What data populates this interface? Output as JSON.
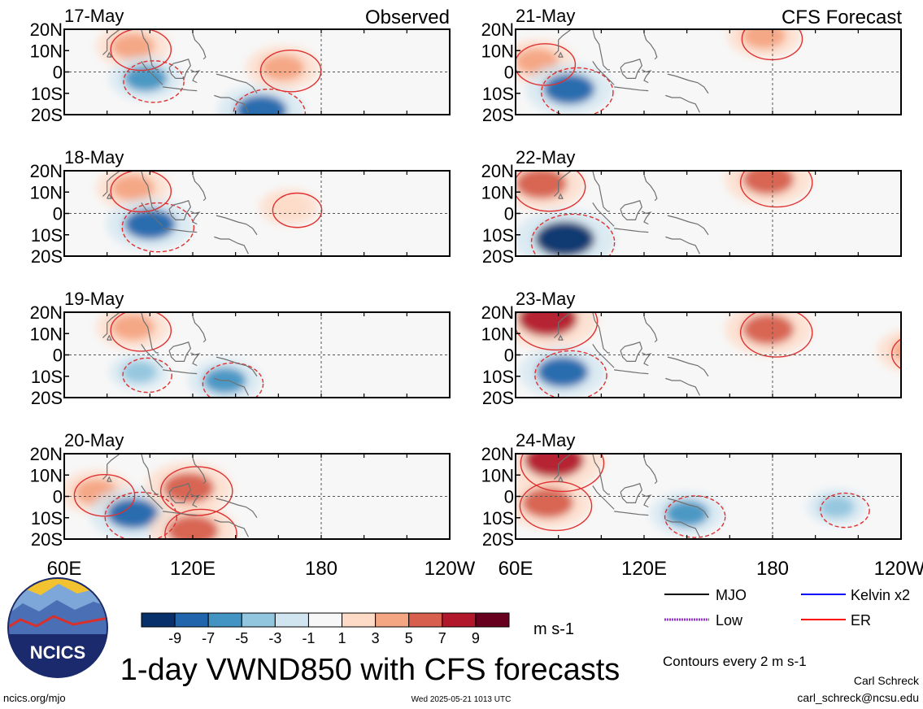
{
  "title": "1-day VWND850 with CFS forecasts",
  "columns": [
    {
      "label": "Observed"
    },
    {
      "label": "CFS Forecast"
    }
  ],
  "panels": [
    {
      "date": "17-May",
      "col": 0,
      "row": 0
    },
    {
      "date": "18-May",
      "col": 0,
      "row": 1
    },
    {
      "date": "19-May",
      "col": 0,
      "row": 2
    },
    {
      "date": "20-May",
      "col": 0,
      "row": 3
    },
    {
      "date": "21-May",
      "col": 1,
      "row": 0
    },
    {
      "date": "22-May",
      "col": 1,
      "row": 1
    },
    {
      "date": "23-May",
      "col": 1,
      "row": 2
    },
    {
      "date": "24-May",
      "col": 1,
      "row": 3
    }
  ],
  "lat_ticks": [
    "20N",
    "10N",
    "0",
    "10S",
    "20S"
  ],
  "lon_ticks": [
    "60E",
    "120E",
    "180",
    "120W"
  ],
  "colorbar": {
    "labels": [
      "-9",
      "-7",
      "-5",
      "-3",
      "-1",
      "1",
      "3",
      "5",
      "7",
      "9"
    ],
    "colors": [
      "#08306b",
      "#2166ac",
      "#4393c3",
      "#92c5de",
      "#d1e5f0",
      "#f7f7f7",
      "#fddbc7",
      "#f4a582",
      "#d6604d",
      "#b2182b",
      "#67001f"
    ],
    "units": "m s-1"
  },
  "legend": {
    "items": [
      {
        "label": "MJO",
        "color": "#000000"
      },
      {
        "label": "Kelvin x2",
        "color": "#0000ff"
      },
      {
        "label": "Low",
        "color": "#9933cc"
      },
      {
        "label": "ER",
        "color": "#ff0000"
      }
    ],
    "contours_note": "Contours every 2 m s-1"
  },
  "logo_text": "NCICS",
  "footer": {
    "left": "ncics.org/mjo",
    "center": "Wed 2025-05-21 1013 UTC",
    "author": "Carl Schreck",
    "email": "carl_schreck@ncsu.edu"
  },
  "chart_data": {
    "type": "heatmap",
    "variable": "VWND850",
    "units": "m s-1",
    "lat_range": [
      "20S",
      "20N"
    ],
    "lon_range": [
      "60E",
      "120W"
    ],
    "color_levels": [
      -9,
      -7,
      -5,
      -3,
      -1,
      1,
      3,
      5,
      7,
      9
    ],
    "contour_interval": 2,
    "features": [
      {
        "date": "17-May",
        "lon": 92,
        "lat": 12,
        "value": 5
      },
      {
        "date": "17-May",
        "lon": 98,
        "lat": -3,
        "value": -5
      },
      {
        "date": "17-May",
        "lon": 152,
        "lat": -18,
        "value": -7
      },
      {
        "date": "17-May",
        "lon": 162,
        "lat": 2,
        "value": 5
      },
      {
        "date": "18-May",
        "lon": 92,
        "lat": 12,
        "value": 5
      },
      {
        "date": "18-May",
        "lon": 100,
        "lat": -5,
        "value": -7
      },
      {
        "date": "18-May",
        "lon": 165,
        "lat": 3,
        "value": 3
      },
      {
        "date": "19-May",
        "lon": 92,
        "lat": 13,
        "value": 5
      },
      {
        "date": "19-May",
        "lon": 95,
        "lat": -8,
        "value": -3
      },
      {
        "date": "19-May",
        "lon": 135,
        "lat": -12,
        "value": -5
      },
      {
        "date": "20-May",
        "lon": 75,
        "lat": 2,
        "value": 5
      },
      {
        "date": "20-May",
        "lon": 92,
        "lat": -8,
        "value": -7
      },
      {
        "date": "20-May",
        "lon": 118,
        "lat": 4,
        "value": 7
      },
      {
        "date": "20-May",
        "lon": 120,
        "lat": -16,
        "value": 7
      },
      {
        "date": "21-May",
        "lon": 70,
        "lat": 5,
        "value": 5
      },
      {
        "date": "21-May",
        "lon": 85,
        "lat": -8,
        "value": -7
      },
      {
        "date": "21-May",
        "lon": 176,
        "lat": 17,
        "value": 5
      },
      {
        "date": "22-May",
        "lon": 72,
        "lat": 14,
        "value": 7
      },
      {
        "date": "22-May",
        "lon": 83,
        "lat": -12,
        "value": -9
      },
      {
        "date": "22-May",
        "lon": 178,
        "lat": 16,
        "value": 7
      },
      {
        "date": "23-May",
        "lon": 75,
        "lat": 17,
        "value": 9
      },
      {
        "date": "23-May",
        "lon": 82,
        "lat": -8,
        "value": -7
      },
      {
        "date": "23-May",
        "lon": 178,
        "lat": 12,
        "value": 7
      },
      {
        "date": "23-May",
        "lon": 246,
        "lat": 2,
        "value": 5
      },
      {
        "date": "24-May",
        "lon": 78,
        "lat": 17,
        "value": 9
      },
      {
        "date": "24-May",
        "lon": 75,
        "lat": -3,
        "value": 7
      },
      {
        "date": "24-May",
        "lon": 140,
        "lat": -8,
        "value": -5
      },
      {
        "date": "24-May",
        "lon": 210,
        "lat": -5,
        "value": -3
      }
    ]
  }
}
